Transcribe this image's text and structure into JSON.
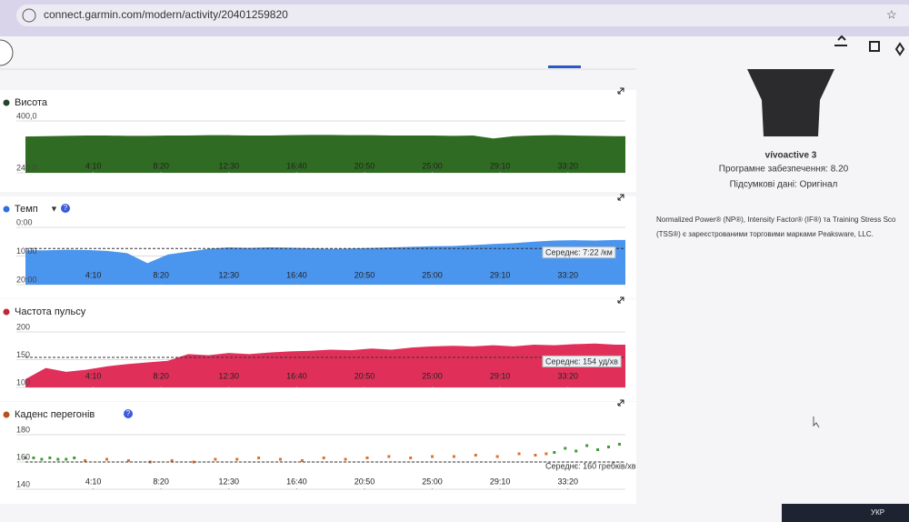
{
  "browser": {
    "url": "connect.garmin.com/modern/activity/20401259820"
  },
  "device": {
    "name": "vívoactive 3",
    "software": "Програмне забезпечення: 8.20",
    "summary": "Підсумкові дані: Оригінал",
    "notice": [
      "Normalized Power® (NP®), Intensity Factor® (IF®) та Training Stress Sco",
      "(TSS®) є зареєстрованими торговими марками Peaksware, LLC."
    ]
  },
  "taskbar": {
    "language": "УКР"
  },
  "chart_data": [
    {
      "type": "area",
      "title": "Висота",
      "color": "#2f6b22",
      "dot": "#24452a",
      "xlim": [
        0,
        2212
      ],
      "ylim": [
        240,
        400
      ],
      "yticks": [
        {
          "value": 400,
          "label": "400,0"
        },
        {
          "value": 240,
          "label": "240,0"
        }
      ],
      "xticks": [
        {
          "value": 250,
          "label": "4:10"
        },
        {
          "value": 500,
          "label": "8:20"
        },
        {
          "value": 750,
          "label": "12:30"
        },
        {
          "value": 1000,
          "label": "16:40"
        },
        {
          "value": 1250,
          "label": "20:50"
        },
        {
          "value": 1500,
          "label": "25:00"
        },
        {
          "value": 1750,
          "label": "29:10"
        },
        {
          "value": 2000,
          "label": "33:20"
        }
      ],
      "x": [
        0,
        75,
        150,
        225,
        300,
        375,
        450,
        525,
        600,
        675,
        750,
        825,
        900,
        975,
        1050,
        1125,
        1200,
        1275,
        1350,
        1425,
        1500,
        1575,
        1650,
        1725,
        1800,
        1875,
        1950,
        2025,
        2100,
        2175
      ],
      "values": [
        352,
        353,
        354,
        355,
        355,
        354,
        354,
        355,
        355,
        356,
        356,
        355,
        355,
        356,
        357,
        357,
        356,
        356,
        355,
        355,
        355,
        354,
        355,
        346,
        353,
        355,
        356,
        355,
        354,
        353
      ]
    },
    {
      "type": "area",
      "title": "Темп",
      "color": "#4a95ee",
      "dot": "#2f6fe0",
      "xlim": [
        0,
        2212
      ],
      "ylim": [
        20,
        0
      ],
      "yticks": [
        {
          "value": 0,
          "label": "0:00"
        },
        {
          "value": 10,
          "label": "10:00"
        },
        {
          "value": 20,
          "label": "20:00"
        }
      ],
      "xticks": [
        {
          "value": 250,
          "label": "4:10"
        },
        {
          "value": 500,
          "label": "8:20"
        },
        {
          "value": 750,
          "label": "12:30"
        },
        {
          "value": 1000,
          "label": "16:40"
        },
        {
          "value": 1250,
          "label": "20:50"
        },
        {
          "value": 1500,
          "label": "25:00"
        },
        {
          "value": 1750,
          "label": "29:10"
        },
        {
          "value": 2000,
          "label": "33:20"
        }
      ],
      "x": [
        0,
        75,
        150,
        225,
        300,
        375,
        450,
        525,
        600,
        675,
        750,
        825,
        900,
        975,
        1050,
        1125,
        1200,
        1275,
        1350,
        1425,
        1500,
        1575,
        1650,
        1725,
        1800,
        1875,
        1950,
        2025,
        2100,
        2175
      ],
      "values": [
        8,
        8,
        7.8,
        7.9,
        8.2,
        9,
        12.5,
        9.5,
        8.5,
        7.5,
        7,
        7.2,
        7,
        7.1,
        7.3,
        7.5,
        7.4,
        7.2,
        7,
        6.8,
        6.6,
        6.5,
        6.2,
        5.8,
        5.5,
        5,
        4.6,
        4.5,
        4.6,
        4.4
      ],
      "average": {
        "value": 7.3667,
        "label": "Середнє: 7:22 /км"
      }
    },
    {
      "type": "area",
      "title": "Частота пульсу",
      "color": "#e0305a",
      "dot": "#c0263a",
      "xlim": [
        0,
        2212
      ],
      "ylim": [
        100,
        200
      ],
      "yticks": [
        200,
        150,
        100
      ],
      "xticks": [
        {
          "value": 250,
          "label": "4:10"
        },
        {
          "value": 500,
          "label": "8:20"
        },
        {
          "value": 750,
          "label": "12:30"
        },
        {
          "value": 1000,
          "label": "16:40"
        },
        {
          "value": 1250,
          "label": "20:50"
        },
        {
          "value": 1500,
          "label": "25:00"
        },
        {
          "value": 1750,
          "label": "29:10"
        },
        {
          "value": 2000,
          "label": "33:20"
        }
      ],
      "x": [
        0,
        75,
        150,
        225,
        300,
        375,
        450,
        525,
        600,
        675,
        750,
        825,
        900,
        975,
        1050,
        1125,
        1200,
        1275,
        1350,
        1425,
        1500,
        1575,
        1650,
        1725,
        1800,
        1875,
        1950,
        2025,
        2100,
        2175
      ],
      "values": [
        115,
        135,
        128,
        132,
        138,
        142,
        145,
        148,
        160,
        158,
        162,
        160,
        163,
        165,
        166,
        168,
        167,
        170,
        168,
        172,
        174,
        175,
        174,
        176,
        174,
        177,
        176,
        178,
        179,
        177
      ],
      "average": {
        "value": 154,
        "label": "Середнє: 154 уд/хв"
      }
    },
    {
      "type": "scatter",
      "title": "Каденс перегонів",
      "dot": "#b5521b",
      "xlim": [
        0,
        2212
      ],
      "ylim": [
        140,
        180
      ],
      "yticks": [
        180,
        160,
        140
      ],
      "xticks": [
        {
          "value": 250,
          "label": "4:10"
        },
        {
          "value": 500,
          "label": "8:20"
        },
        {
          "value": 750,
          "label": "12:30"
        },
        {
          "value": 1000,
          "label": "16:40"
        },
        {
          "value": 1250,
          "label": "20:50"
        },
        {
          "value": 1500,
          "label": "25:00"
        },
        {
          "value": 1750,
          "label": "29:10"
        },
        {
          "value": 2000,
          "label": "33:20"
        }
      ],
      "series": [
        {
          "color": "#3f9a3a",
          "x": [
            0,
            30,
            60,
            90,
            120,
            150,
            180,
            1950,
            1990,
            2030,
            2070,
            2110,
            2150,
            2190
          ],
          "values": [
            163,
            163,
            162,
            163,
            162,
            162,
            163,
            167,
            170,
            168,
            172,
            169,
            171,
            173
          ]
        },
        {
          "color": "#e0712b",
          "x": [
            220,
            300,
            380,
            460,
            540,
            620,
            700,
            780,
            860,
            940,
            1020,
            1100,
            1180,
            1260,
            1340,
            1420,
            1500,
            1580,
            1660,
            1740,
            1820,
            1880,
            1920
          ],
          "values": [
            161,
            162,
            161,
            160,
            161,
            160,
            162,
            162,
            163,
            162,
            161,
            163,
            162,
            163,
            164,
            163,
            164,
            164,
            165,
            164,
            166,
            165,
            166
          ]
        }
      ],
      "average": {
        "value": 160,
        "label": "Середнє: 160 гребків/хв"
      }
    }
  ]
}
